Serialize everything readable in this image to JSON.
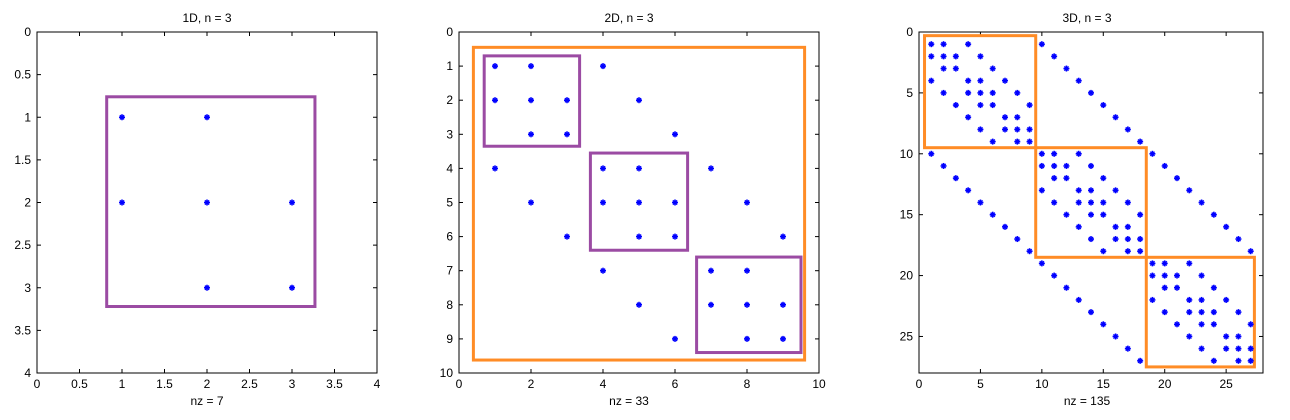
{
  "figure": {
    "background": "#ffffff",
    "axes_color": "#000000",
    "marker_color": "#0000ff",
    "marker": "*"
  },
  "chart_data": [
    {
      "type": "scatter",
      "title": "1D, n = 3",
      "xlabel": "nz = 7",
      "ylabel": "",
      "xlim": [
        0,
        4
      ],
      "ylim": [
        0,
        4
      ],
      "y_reversed": true,
      "xticks": [
        0,
        0.5,
        1,
        1.5,
        2,
        2.5,
        3,
        3.5,
        4
      ],
      "yticks": [
        0,
        0.5,
        1,
        1.5,
        2,
        2.5,
        3,
        3.5,
        4
      ],
      "grid": false,
      "points": [
        [
          1,
          1
        ],
        [
          2,
          1
        ],
        [
          1,
          2
        ],
        [
          2,
          2
        ],
        [
          3,
          2
        ],
        [
          2,
          3
        ],
        [
          3,
          3
        ]
      ],
      "boxes": [
        {
          "x0": 0.82,
          "x1": 3.27,
          "y0": 0.76,
          "y1": 3.22,
          "color": "#9b4ba3"
        }
      ]
    },
    {
      "type": "scatter",
      "title": "2D, n = 3",
      "xlabel": "nz = 33",
      "ylabel": "",
      "xlim": [
        0,
        10
      ],
      "ylim": [
        0,
        10
      ],
      "y_reversed": true,
      "xticks": [
        0,
        2,
        4,
        6,
        8,
        10
      ],
      "yticks": [
        0,
        1,
        2,
        3,
        4,
        5,
        6,
        7,
        8,
        9,
        10
      ],
      "grid": false,
      "points": [
        [
          1,
          1
        ],
        [
          2,
          1
        ],
        [
          4,
          1
        ],
        [
          1,
          2
        ],
        [
          2,
          2
        ],
        [
          3,
          2
        ],
        [
          5,
          2
        ],
        [
          2,
          3
        ],
        [
          3,
          3
        ],
        [
          6,
          3
        ],
        [
          1,
          4
        ],
        [
          4,
          4
        ],
        [
          5,
          4
        ],
        [
          7,
          4
        ],
        [
          2,
          5
        ],
        [
          4,
          5
        ],
        [
          5,
          5
        ],
        [
          6,
          5
        ],
        [
          8,
          5
        ],
        [
          3,
          6
        ],
        [
          5,
          6
        ],
        [
          6,
          6
        ],
        [
          9,
          6
        ],
        [
          4,
          7
        ],
        [
          7,
          7
        ],
        [
          8,
          7
        ],
        [
          5,
          8
        ],
        [
          7,
          8
        ],
        [
          8,
          8
        ],
        [
          9,
          8
        ],
        [
          6,
          9
        ],
        [
          8,
          9
        ],
        [
          9,
          9
        ]
      ],
      "boxes": [
        {
          "x0": 0.4,
          "x1": 9.6,
          "y0": 0.45,
          "y1": 9.62,
          "color": "#ff8c26"
        },
        {
          "x0": 0.7,
          "x1": 3.35,
          "y0": 0.7,
          "y1": 3.35,
          "color": "#9b4ba3"
        },
        {
          "x0": 3.65,
          "x1": 6.35,
          "y0": 3.55,
          "y1": 6.4,
          "color": "#9b4ba3"
        },
        {
          "x0": 6.6,
          "x1": 9.5,
          "y0": 6.6,
          "y1": 9.4,
          "color": "#9b4ba3"
        }
      ]
    },
    {
      "type": "scatter",
      "title": "3D, n = 3",
      "xlabel": "nz = 135",
      "ylabel": "",
      "xlim": [
        0,
        28
      ],
      "ylim": [
        0,
        28
      ],
      "y_reversed": true,
      "xticks": [
        0,
        5,
        10,
        15,
        20,
        25
      ],
      "yticks": [
        0,
        5,
        10,
        15,
        20,
        25
      ],
      "grid": false,
      "matrix_size": 27,
      "grid_n": 3,
      "points_rule": "7-point Laplacian sparsity pattern on a 3x3x3 grid (diagonal plus neighbors at offsets 1, 3, 9)",
      "boxes": [
        {
          "x0": 0.45,
          "x1": 9.5,
          "y0": 0.3,
          "y1": 9.5,
          "color": "#ff8c26"
        },
        {
          "x0": 9.5,
          "x1": 18.5,
          "y0": 9.5,
          "y1": 18.5,
          "color": "#ff8c26"
        },
        {
          "x0": 18.5,
          "x1": 27.3,
          "y0": 18.5,
          "y1": 27.5,
          "color": "#ff8c26"
        }
      ]
    }
  ]
}
